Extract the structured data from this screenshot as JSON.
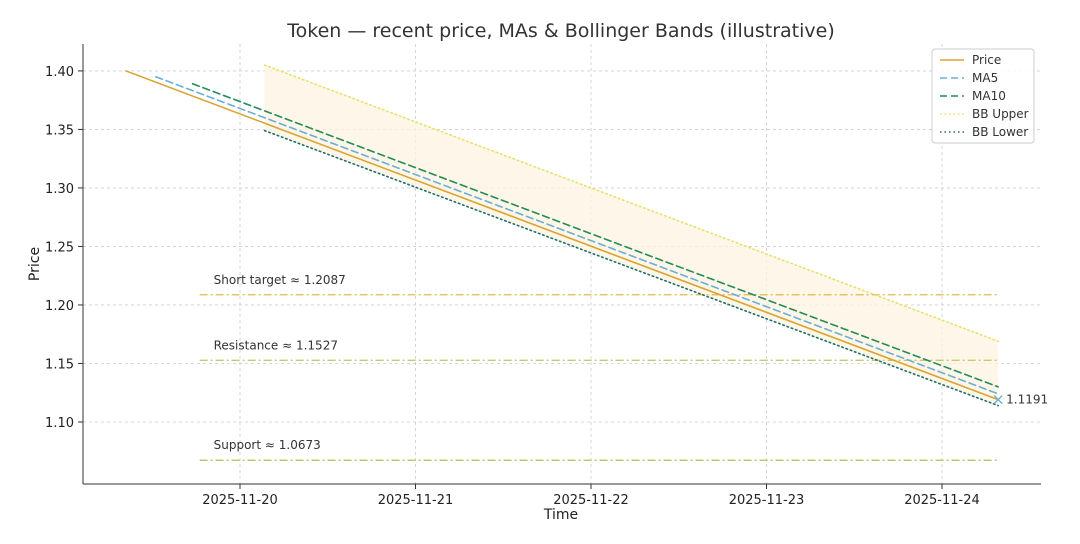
{
  "chart_data": {
    "type": "line",
    "title": "Token — recent price, MAs & Bollinger Bands (illustrative)",
    "xlabel": "Time",
    "ylabel": "Price",
    "x_ticks": [
      "2025-11-20",
      "2025-11-21",
      "2025-11-22",
      "2025-11-23",
      "2025-11-24"
    ],
    "x_range": [
      -0.64,
      4.32
    ],
    "ylim": [
      1.047,
      1.423
    ],
    "y_ticks": [
      1.1,
      1.15,
      1.2,
      1.25,
      1.3,
      1.35,
      1.4
    ],
    "y_tick_labels": [
      "1.10",
      "1.15",
      "1.20",
      "1.25",
      "1.30",
      "1.35",
      "1.40"
    ],
    "grid": true,
    "series": [
      {
        "name": "Price",
        "color": "#d9a431",
        "style": "solid",
        "x": [
          -0.65,
          4.32
        ],
        "y": [
          1.4,
          1.1191
        ]
      },
      {
        "name": "MA5",
        "color": "#6baed6",
        "style": "dashed",
        "x": [
          -0.48,
          4.32
        ],
        "y": [
          1.395,
          1.124
        ]
      },
      {
        "name": "MA10",
        "color": "#238b5a",
        "style": "dashed",
        "x": [
          -0.27,
          4.32
        ],
        "y": [
          1.389,
          1.13
        ]
      },
      {
        "name": "BB Upper",
        "color": "#e3e36b",
        "style": "dotted",
        "x": [
          0.14,
          4.32
        ],
        "y": [
          1.405,
          1.169
        ]
      },
      {
        "name": "BB Lower",
        "color": "#1f6f6a",
        "style": "dotted",
        "x": [
          0.14,
          4.32
        ],
        "y": [
          1.349,
          1.114
        ]
      }
    ],
    "band": {
      "name": "Bollinger band",
      "color": "#fdf3e0",
      "x": [
        0.14,
        4.32
      ],
      "upper": [
        1.405,
        1.169
      ],
      "lower": [
        1.349,
        1.114
      ]
    },
    "hlines": [
      {
        "label": "Short target ≈ 1.2087",
        "value": 1.2087,
        "color": "#e0b84a",
        "x": [
          -0.23,
          4.32
        ]
      },
      {
        "label": "Resistance ≈ 1.1527",
        "value": 1.1527,
        "color": "#c9c96a",
        "x": [
          -0.23,
          4.32
        ]
      },
      {
        "label": "Support ≈ 1.0673",
        "value": 1.0673,
        "color": "#a8c455",
        "x": [
          -0.23,
          4.32
        ]
      }
    ],
    "last_point": {
      "x": 4.32,
      "value": 1.1191,
      "label": "1.1191"
    },
    "legend": {
      "placement": "top-right",
      "entries": [
        "Price",
        "MA5",
        "MA10",
        "BB Upper",
        "BB Lower"
      ]
    }
  }
}
